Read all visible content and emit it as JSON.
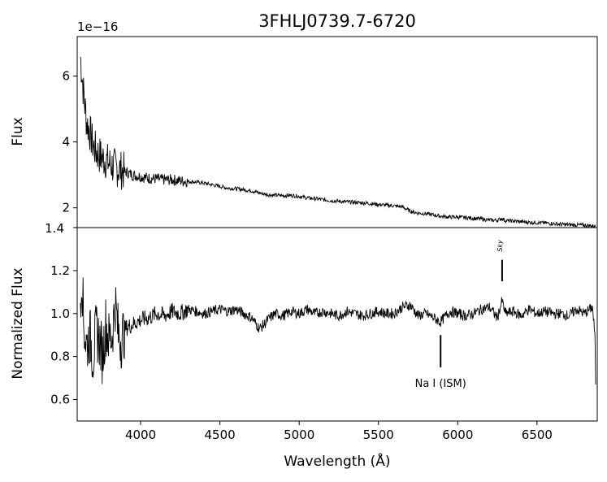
{
  "title": "3FHLJ0739.7-6720",
  "chart_data": [
    {
      "type": "line",
      "title": "3FHLJ0739.7-6720",
      "ylabel": "Flux",
      "offset_label": "1e−16",
      "xlim": [
        3600,
        6880
      ],
      "ylim": [
        1.4,
        7.2
      ],
      "y_scale_factor": 1e-16,
      "yticks": [
        2,
        4,
        6
      ],
      "ytick_labels": [
        "2",
        "4",
        "6"
      ],
      "extra_ytick_label": "1.4",
      "series": [
        {
          "x": [
            3620,
            3640,
            3660,
            3680,
            3700,
            3720,
            3740,
            3760,
            3780,
            3800,
            3850,
            3900,
            3950,
            4000,
            4050,
            4100,
            4150,
            4200,
            4250,
            4300,
            4350,
            4400,
            4450,
            4500,
            4550,
            4600,
            4650,
            4700,
            4750,
            4800,
            4850,
            4900,
            4950,
            5000,
            5050,
            5100,
            5150,
            5200,
            5250,
            5300,
            5350,
            5400,
            5450,
            5500,
            5550,
            5600,
            5650,
            5700,
            5750,
            5800,
            5850,
            5900,
            5950,
            6000,
            6050,
            6100,
            6150,
            6200,
            6250,
            6280,
            6300,
            6350,
            6400,
            6450,
            6500,
            6550,
            6600,
            6650,
            6700,
            6750,
            6800,
            6850,
            6870
          ],
          "y": [
            6.6,
            5.5,
            4.6,
            4.3,
            3.9,
            3.7,
            3.6,
            3.5,
            3.45,
            3.35,
            3.2,
            3.1,
            3.0,
            2.95,
            2.9,
            2.88,
            2.85,
            2.85,
            2.82,
            2.8,
            2.78,
            2.75,
            2.7,
            2.65,
            2.6,
            2.58,
            2.55,
            2.52,
            2.45,
            2.4,
            2.38,
            2.37,
            2.38,
            2.35,
            2.3,
            2.28,
            2.25,
            2.22,
            2.2,
            2.18,
            2.17,
            2.15,
            2.13,
            2.1,
            2.08,
            2.06,
            2.03,
            1.9,
            1.84,
            1.82,
            1.78,
            1.74,
            1.72,
            1.72,
            1.7,
            1.68,
            1.66,
            1.63,
            1.62,
            1.68,
            1.61,
            1.6,
            1.58,
            1.56,
            1.55,
            1.54,
            1.52,
            1.5,
            1.49,
            1.48,
            1.47,
            1.45,
            1.44
          ]
        }
      ]
    },
    {
      "type": "line",
      "xlabel": "Wavelength (Å)",
      "ylabel": "Normalized Flux",
      "xlim": [
        3600,
        6880
      ],
      "ylim": [
        0.5,
        1.4
      ],
      "xticks": [
        4000,
        4500,
        5000,
        5500,
        6000,
        6500
      ],
      "xtick_labels": [
        "4000",
        "4500",
        "5000",
        "5500",
        "6000",
        "6500"
      ],
      "yticks": [
        0.6,
        0.8,
        1.0,
        1.2,
        1.4
      ],
      "ytick_labels": [
        "0.6",
        "0.8",
        "1.0",
        "1.2",
        "1.4"
      ],
      "series": [
        {
          "x": [
            3620,
            3630,
            3640,
            3660,
            3680,
            3700,
            3720,
            3740,
            3760,
            3780,
            3800,
            3820,
            3840,
            3860,
            3880,
            3900,
            3950,
            4000,
            4050,
            4100,
            4150,
            4200,
            4250,
            4300,
            4350,
            4400,
            4450,
            4500,
            4550,
            4600,
            4650,
            4700,
            4750,
            4780,
            4800,
            4850,
            4900,
            4950,
            5000,
            5050,
            5100,
            5150,
            5200,
            5250,
            5300,
            5350,
            5400,
            5450,
            5500,
            5550,
            5600,
            5650,
            5700,
            5750,
            5800,
            5850,
            5890,
            5950,
            6000,
            6050,
            6100,
            6150,
            6200,
            6250,
            6280,
            6300,
            6350,
            6400,
            6450,
            6500,
            6550,
            6600,
            6650,
            6700,
            6750,
            6800,
            6850,
            6865,
            6870
          ],
          "y": [
            1.08,
            1.2,
            0.95,
            0.85,
            0.9,
            0.8,
            0.92,
            0.88,
            0.8,
            0.95,
            0.88,
            0.9,
            1.05,
            0.9,
            0.88,
            0.93,
            0.95,
            0.97,
            0.98,
            1.0,
            0.99,
            1.01,
            1.0,
            1.02,
            1.01,
            1.0,
            1.01,
            1.02,
            1.01,
            1.02,
            1.0,
            0.98,
            0.93,
            0.95,
            0.97,
            1.0,
            0.99,
            1.01,
            1.0,
            1.02,
            1.0,
            1.01,
            1.0,
            0.99,
            1.01,
            1.0,
            0.99,
            1.0,
            1.01,
            1.0,
            1.0,
            1.03,
            1.04,
            0.99,
            1.0,
            0.98,
            0.96,
            1.01,
            1.0,
            0.99,
            1.0,
            1.02,
            1.03,
            0.98,
            1.06,
            1.0,
            1.01,
            0.99,
            1.02,
            1.0,
            1.01,
            1.0,
            1.0,
            0.99,
            1.02,
            1.0,
            1.03,
            0.9,
            0.67
          ]
        }
      ],
      "annotations": [
        {
          "text": "Na I (ISM)",
          "x": 5892,
          "y_top": 0.9,
          "y_bottom": 0.75
        },
        {
          "text": "Sky",
          "x": 6280,
          "y_top": 1.25,
          "y_bottom": 1.15
        }
      ]
    }
  ]
}
